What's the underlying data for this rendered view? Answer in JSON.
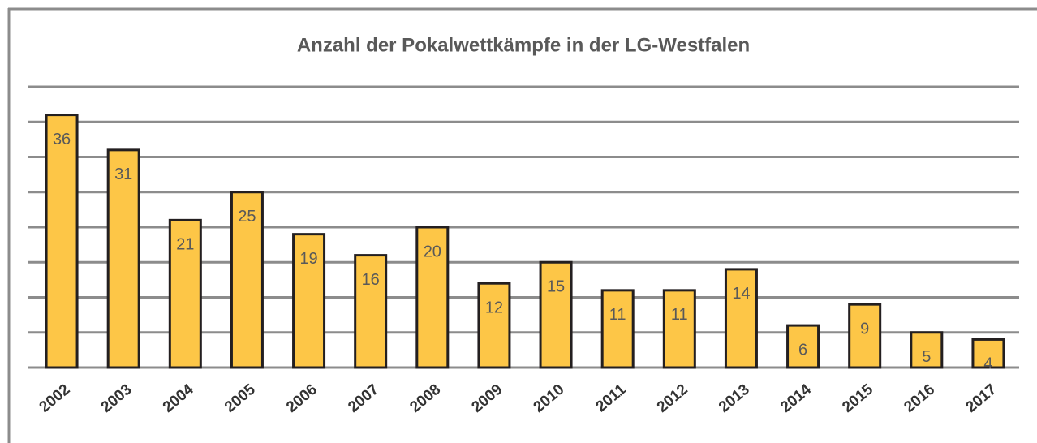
{
  "chart_data": {
    "type": "bar",
    "title": "Anzahl der Pokalwettkämpfe in der LG-Westfalen",
    "categories": [
      "2002",
      "2003",
      "2004",
      "2005",
      "2006",
      "2007",
      "2008",
      "2009",
      "2010",
      "2011",
      "2012",
      "2013",
      "2014",
      "2015",
      "2016",
      "2017"
    ],
    "values": [
      36,
      31,
      21,
      25,
      19,
      16,
      20,
      12,
      15,
      11,
      11,
      14,
      6,
      9,
      5,
      4
    ],
    "color": "#fdc647",
    "ylim": [
      0,
      40
    ],
    "yticks": [
      0,
      5,
      10,
      15,
      20,
      25,
      30,
      35,
      40
    ],
    "grid": true
  }
}
